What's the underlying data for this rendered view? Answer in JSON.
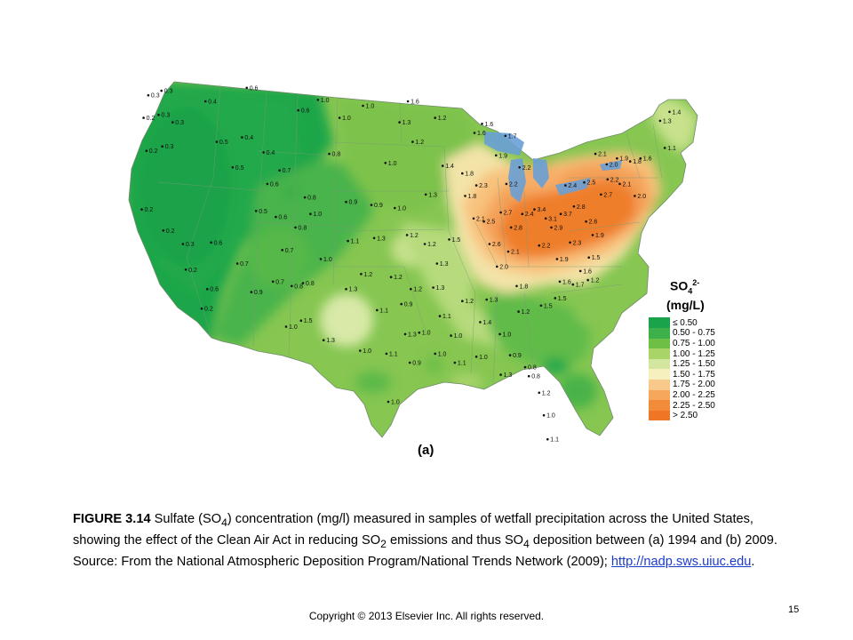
{
  "map": {
    "panel_label": "(a)",
    "stations": [
      {
        "label": "0.3",
        "lon": -122.9,
        "lat": 48.3
      },
      {
        "label": "0.3",
        "lon": -121.5,
        "lat": 48.6
      },
      {
        "label": "0.2",
        "lon": -123.4,
        "lat": 46.8
      },
      {
        "label": "0.3",
        "lon": -121.8,
        "lat": 47.0
      },
      {
        "label": "0.3",
        "lon": -120.3,
        "lat": 46.5
      },
      {
        "label": "0.2",
        "lon": -123.1,
        "lat": 44.6
      },
      {
        "label": "0.3",
        "lon": -121.4,
        "lat": 44.9
      },
      {
        "label": "0.2",
        "lon": -123.6,
        "lat": 40.7
      },
      {
        "label": "0.2",
        "lon": -121.3,
        "lat": 39.3
      },
      {
        "label": "0.3",
        "lon": -119.2,
        "lat": 38.4
      },
      {
        "label": "0.2",
        "lon": -118.9,
        "lat": 36.7
      },
      {
        "label": "0.6",
        "lon": -116.6,
        "lat": 35.4
      },
      {
        "label": "0.2",
        "lon": -117.2,
        "lat": 34.1
      },
      {
        "label": "0.4",
        "lon": -116.8,
        "lat": 47.9
      },
      {
        "label": "0.5",
        "lon": -115.6,
        "lat": 45.2
      },
      {
        "label": "0.5",
        "lon": -113.9,
        "lat": 43.5
      },
      {
        "label": "0.6",
        "lon": -116.2,
        "lat": 38.5
      },
      {
        "label": "0.7",
        "lon": -113.4,
        "lat": 37.1
      },
      {
        "label": "0.6",
        "lon": -112.4,
        "lat": 48.8
      },
      {
        "label": "0.4",
        "lon": -112.9,
        "lat": 45.5
      },
      {
        "label": "0.4",
        "lon": -110.6,
        "lat": 44.5
      },
      {
        "label": "0.7",
        "lon": -108.9,
        "lat": 43.3
      },
      {
        "label": "0.6",
        "lon": -110.2,
        "lat": 42.4
      },
      {
        "label": "0.8",
        "lon": -106.2,
        "lat": 41.5
      },
      {
        "label": "0.5",
        "lon": -111.4,
        "lat": 40.6
      },
      {
        "label": "0.6",
        "lon": -109.3,
        "lat": 40.2
      },
      {
        "label": "0.8",
        "lon": -107.2,
        "lat": 39.5
      },
      {
        "label": "1.0",
        "lon": -105.6,
        "lat": 40.4
      },
      {
        "label": "0.7",
        "lon": -108.6,
        "lat": 38.0
      },
      {
        "label": "0.9",
        "lon": -111.9,
        "lat": 35.2
      },
      {
        "label": "0.7",
        "lon": -109.6,
        "lat": 35.9
      },
      {
        "label": "0.8",
        "lon": -107.6,
        "lat": 35.6
      },
      {
        "label": "0.8",
        "lon": -106.4,
        "lat": 35.8
      },
      {
        "label": "1.5",
        "lon": -106.6,
        "lat": 33.3
      },
      {
        "label": "1.0",
        "lon": -108.2,
        "lat": 32.9
      },
      {
        "label": "0.6",
        "lon": -106.9,
        "lat": 47.3
      },
      {
        "label": "1.0",
        "lon": -104.8,
        "lat": 48.0
      },
      {
        "label": "0.8",
        "lon": -103.6,
        "lat": 44.4
      },
      {
        "label": "1.0",
        "lon": -102.5,
        "lat": 46.8
      },
      {
        "label": "1.0",
        "lon": -100.0,
        "lat": 47.6
      },
      {
        "label": "0.9",
        "lon": -101.8,
        "lat": 41.2
      },
      {
        "label": "1.0",
        "lon": -97.6,
        "lat": 43.8
      },
      {
        "label": "0.9",
        "lon": -99.1,
        "lat": 41.0
      },
      {
        "label": "1.0",
        "lon": -96.6,
        "lat": 40.8
      },
      {
        "label": "1.3",
        "lon": -96.1,
        "lat": 46.5
      },
      {
        "label": "1.6",
        "lon": -95.2,
        "lat": 47.9
      },
      {
        "label": "1.2",
        "lon": -94.7,
        "lat": 45.2
      },
      {
        "label": "1.2",
        "lon": -92.3,
        "lat": 46.8
      },
      {
        "label": "1.1",
        "lon": -101.6,
        "lat": 38.6
      },
      {
        "label": "1.3",
        "lon": -98.8,
        "lat": 38.8
      },
      {
        "label": "1.2",
        "lon": -95.3,
        "lat": 39.0
      },
      {
        "label": "1.0",
        "lon": -104.5,
        "lat": 37.4
      },
      {
        "label": "1.2",
        "lon": -100.2,
        "lat": 36.4
      },
      {
        "label": "1.2",
        "lon": -97.0,
        "lat": 36.2
      },
      {
        "label": "1.2",
        "lon": -94.9,
        "lat": 35.4
      },
      {
        "label": "1.3",
        "lon": -101.8,
        "lat": 35.4
      },
      {
        "label": "1.1",
        "lon": -98.5,
        "lat": 34.0
      },
      {
        "label": "1.3",
        "lon": -104.2,
        "lat": 32.0
      },
      {
        "label": "1.0",
        "lon": -100.3,
        "lat": 31.3
      },
      {
        "label": "1.1",
        "lon": -97.5,
        "lat": 31.1
      },
      {
        "label": "1.3",
        "lon": -95.5,
        "lat": 32.4
      },
      {
        "label": "0.9",
        "lon": -95.0,
        "lat": 30.5
      },
      {
        "label": "1.0",
        "lon": -97.3,
        "lat": 27.9
      },
      {
        "label": "1.2",
        "lon": -93.4,
        "lat": 38.4
      },
      {
        "label": "1.3",
        "lon": -93.3,
        "lat": 41.7
      },
      {
        "label": "1.4",
        "lon": -91.5,
        "lat": 43.6
      },
      {
        "label": "1.8",
        "lon": -89.4,
        "lat": 43.1
      },
      {
        "label": "1.6",
        "lon": -88.1,
        "lat": 45.8
      },
      {
        "label": "1.8",
        "lon": -89.1,
        "lat": 41.6
      },
      {
        "label": "2.3",
        "lon": -87.9,
        "lat": 42.3
      },
      {
        "label": "2.1",
        "lon": -88.2,
        "lat": 40.1
      },
      {
        "label": "1.5",
        "lon": -90.8,
        "lat": 38.7
      },
      {
        "label": "1.3",
        "lon": -92.1,
        "lat": 37.1
      },
      {
        "label": "1.3",
        "lon": -92.5,
        "lat": 35.5
      },
      {
        "label": "1.1",
        "lon": -91.8,
        "lat": 33.6
      },
      {
        "label": "1.0",
        "lon": -90.6,
        "lat": 32.3
      },
      {
        "label": "1.0",
        "lon": -92.3,
        "lat": 31.1
      },
      {
        "label": "1.1",
        "lon": -90.2,
        "lat": 30.5
      },
      {
        "label": "1.2",
        "lon": -89.4,
        "lat": 34.6
      },
      {
        "label": "1.3",
        "lon": -86.8,
        "lat": 34.7
      },
      {
        "label": "1.4",
        "lon": -87.5,
        "lat": 33.2
      },
      {
        "label": "1.0",
        "lon": -85.4,
        "lat": 32.4
      },
      {
        "label": "1.0",
        "lon": -87.9,
        "lat": 30.9
      },
      {
        "label": "0.9",
        "lon": -84.3,
        "lat": 31.0
      },
      {
        "label": "1.3",
        "lon": -85.3,
        "lat": 29.7
      },
      {
        "label": "0.8",
        "lon": -82.3,
        "lat": 29.6
      },
      {
        "label": "1.2",
        "lon": -81.2,
        "lat": 28.5
      },
      {
        "label": "1.0",
        "lon": -80.7,
        "lat": 27.0
      },
      {
        "label": "1.1",
        "lon": -80.3,
        "lat": 25.4
      },
      {
        "label": "1.2",
        "lon": -83.4,
        "lat": 33.9
      },
      {
        "label": "1.5",
        "lon": -81.0,
        "lat": 34.3
      },
      {
        "label": "1.5",
        "lon": -79.5,
        "lat": 34.8
      },
      {
        "label": "1.6",
        "lon": -79.0,
        "lat": 35.9
      },
      {
        "label": "1.7",
        "lon": -77.6,
        "lat": 35.7
      },
      {
        "label": "1.8",
        "lon": -83.6,
        "lat": 35.6
      },
      {
        "label": "2.0",
        "lon": -85.7,
        "lat": 36.9
      },
      {
        "label": "2.1",
        "lon": -84.5,
        "lat": 37.9
      },
      {
        "label": "2.6",
        "lon": -86.5,
        "lat": 38.4
      },
      {
        "label": "2.5",
        "lon": -87.1,
        "lat": 39.9
      },
      {
        "label": "2.7",
        "lon": -85.3,
        "lat": 40.5
      },
      {
        "label": "2.8",
        "lon": -84.2,
        "lat": 39.5
      },
      {
        "label": "2.4",
        "lon": -83.0,
        "lat": 40.4
      },
      {
        "label": "3.4",
        "lon": -81.7,
        "lat": 40.7
      },
      {
        "label": "3.1",
        "lon": -80.5,
        "lat": 40.1
      },
      {
        "label": "2.9",
        "lon": -79.9,
        "lat": 39.5
      },
      {
        "label": "3.7",
        "lon": -78.9,
        "lat": 40.4
      },
      {
        "label": "2.8",
        "lon": -77.5,
        "lat": 40.9
      },
      {
        "label": "2.6",
        "lon": -76.2,
        "lat": 39.9
      },
      {
        "label": "2.3",
        "lon": -77.9,
        "lat": 38.5
      },
      {
        "label": "1.9",
        "lon": -79.3,
        "lat": 37.4
      },
      {
        "label": "2.2",
        "lon": -81.2,
        "lat": 38.3
      },
      {
        "label": "2.4",
        "lon": -78.4,
        "lat": 42.3
      },
      {
        "label": "2.5",
        "lon": -76.4,
        "lat": 42.5
      },
      {
        "label": "2.7",
        "lon": -74.6,
        "lat": 41.7
      },
      {
        "label": "2.2",
        "lon": -73.9,
        "lat": 42.7
      },
      {
        "label": "2.1",
        "lon": -75.2,
        "lat": 44.4
      },
      {
        "label": "2.0",
        "lon": -74.0,
        "lat": 43.7
      },
      {
        "label": "2.2",
        "lon": -84.7,
        "lat": 42.4
      },
      {
        "label": "2.2",
        "lon": -83.3,
        "lat": 43.5
      },
      {
        "label": "1.9",
        "lon": -85.8,
        "lat": 44.3
      },
      {
        "label": "1.7",
        "lon": -84.8,
        "lat": 45.6
      },
      {
        "label": "1.6",
        "lon": -87.3,
        "lat": 46.4
      },
      {
        "label": "2.1",
        "lon": -72.6,
        "lat": 42.4
      },
      {
        "label": "1.9",
        "lon": -72.9,
        "lat": 44.1
      },
      {
        "label": "1.8",
        "lon": -71.5,
        "lat": 43.9
      },
      {
        "label": "1.6",
        "lon": -70.4,
        "lat": 44.1
      },
      {
        "label": "1.3",
        "lon": -68.3,
        "lat": 46.6
      },
      {
        "label": "1.4",
        "lon": -67.3,
        "lat": 47.2
      },
      {
        "label": "1.1",
        "lon": -67.8,
        "lat": 44.8
      },
      {
        "label": "2.0",
        "lon": -71.0,
        "lat": 41.6
      },
      {
        "label": "1.9",
        "lon": -75.5,
        "lat": 39.0
      },
      {
        "label": "1.5",
        "lon": -75.9,
        "lat": 37.5
      },
      {
        "label": "1.6",
        "lon": -76.8,
        "lat": 36.6
      },
      {
        "label": "1.2",
        "lon": -76.0,
        "lat": 36.0
      },
      {
        "label": "0.8",
        "lon": -82.7,
        "lat": 30.2
      },
      {
        "label": "0.9",
        "lon": -95.9,
        "lat": 34.4
      },
      {
        "label": "1.0",
        "lon": -94.0,
        "lat": 32.5
      }
    ]
  },
  "legend": {
    "title": "SO",
    "title_sub": "4",
    "title_sup": "2-",
    "unit": "(mg/L)",
    "items": [
      {
        "label": "≤ 0.50",
        "color": "#1aa34a"
      },
      {
        "label": "0.50 - 0.75",
        "color": "#3db04a"
      },
      {
        "label": "0.75 - 1.00",
        "color": "#6dbf45"
      },
      {
        "label": "1.00 - 1.25",
        "color": "#a8d468"
      },
      {
        "label": "1.25 - 1.50",
        "color": "#d2e6a0"
      },
      {
        "label": "1.50 - 1.75",
        "color": "#f6efbe"
      },
      {
        "label": "1.75 - 2.00",
        "color": "#f8c98a"
      },
      {
        "label": "2.00 - 2.25",
        "color": "#f6a75c"
      },
      {
        "label": "2.25 - 2.50",
        "color": "#f28c3a"
      },
      {
        "label": "> 2.50",
        "color": "#ee7624"
      }
    ]
  },
  "caption": {
    "figure": "FIGURE 3.14",
    "t1": " Sulfate (SO",
    "s1": "4",
    "t2": ") concentration (mg/l) measured in samples of wetfall precipitation across the United States, showing the effect of the Clean Air Act in reducing SO",
    "s2": "2",
    "t3": " emissions and thus SO",
    "s3": "4",
    "t4": " deposition between (a) 1994 and (b) 2009. Source: From the National Atmospheric Deposition Program/National Trends Network (2009); ",
    "link": "http://nadp.sws.uiuc.edu",
    "end": "."
  },
  "footer": {
    "copyright": "Copyright © 2013 Elsevier Inc. All rights reserved.",
    "page_number": "15"
  }
}
